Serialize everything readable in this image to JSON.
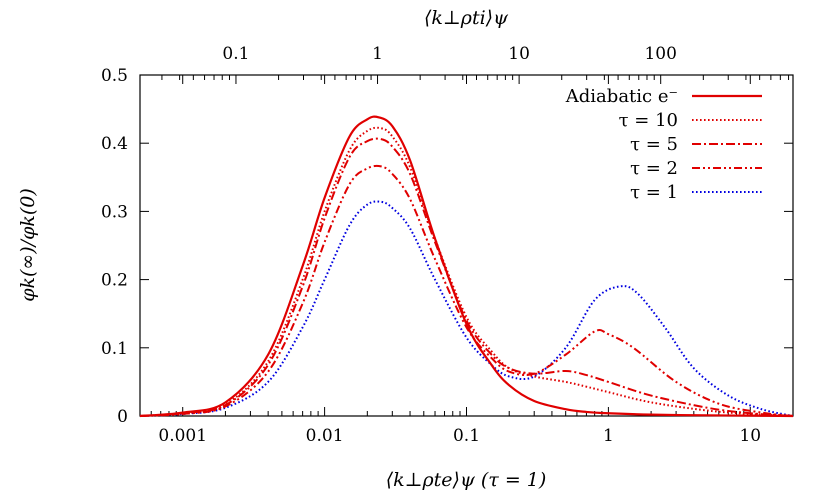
{
  "chart_data": {
    "type": "line",
    "xlabel": "⟨k⊥ρte⟩ψ (τ = 1)",
    "x2label": "⟨k⊥ρti⟩ψ",
    "ylabel": "φk(∞)/φk(0)",
    "xscale": "log",
    "xlim": [
      0.0005,
      20
    ],
    "x2scale": "log",
    "x2lim": [
      0.021,
      860
    ],
    "x_ticks": [
      0.001,
      0.01,
      0.1,
      1,
      10
    ],
    "x_tick_labels": [
      "0.001",
      "0.01",
      "0.1",
      "1",
      "10"
    ],
    "x2_ticks": [
      0.1,
      1,
      10,
      100
    ],
    "x2_tick_labels": [
      "0.1",
      "1",
      "10",
      "100"
    ],
    "ylim": [
      0,
      0.5
    ],
    "y_ticks": [
      0,
      0.1,
      0.2,
      0.3,
      0.4,
      0.5
    ],
    "y_tick_labels": [
      "0",
      "0.1",
      "0.2",
      "0.3",
      "0.4",
      "0.5"
    ],
    "grid": false,
    "legend_position": "top-right",
    "series": [
      {
        "name": "Adiabatic e⁻",
        "color": "#e00000",
        "dash": "solid",
        "x": [
          0.0005,
          0.001,
          0.002,
          0.004,
          0.007,
          0.01,
          0.015,
          0.02,
          0.024,
          0.03,
          0.04,
          0.06,
          0.1,
          0.15,
          0.2,
          0.3,
          0.5,
          0.7,
          1,
          2,
          5,
          10,
          20
        ],
        "y": [
          0,
          0.005,
          0.02,
          0.09,
          0.22,
          0.32,
          0.41,
          0.435,
          0.438,
          0.425,
          0.375,
          0.26,
          0.135,
          0.075,
          0.045,
          0.022,
          0.01,
          0.006,
          0.004,
          0.002,
          0.001,
          0.0005,
          0
        ]
      },
      {
        "name": "τ = 10",
        "color": "#e00000",
        "dash": "dotted",
        "x": [
          0.0005,
          0.001,
          0.002,
          0.004,
          0.007,
          0.01,
          0.015,
          0.02,
          0.025,
          0.03,
          0.04,
          0.06,
          0.1,
          0.15,
          0.2,
          0.3,
          0.5,
          0.7,
          1,
          2,
          5,
          10,
          20
        ],
        "y": [
          0,
          0.004,
          0.017,
          0.08,
          0.2,
          0.3,
          0.39,
          0.418,
          0.422,
          0.41,
          0.365,
          0.26,
          0.145,
          0.095,
          0.07,
          0.058,
          0.05,
          0.043,
          0.035,
          0.02,
          0.008,
          0.003,
          0
        ]
      },
      {
        "name": "τ = 5",
        "color": "#e00000",
        "dash": "dashdot",
        "x": [
          0.0005,
          0.001,
          0.002,
          0.004,
          0.007,
          0.01,
          0.015,
          0.02,
          0.025,
          0.03,
          0.04,
          0.06,
          0.1,
          0.15,
          0.2,
          0.3,
          0.5,
          0.7,
          1,
          2,
          5,
          10,
          20
        ],
        "y": [
          0,
          0.004,
          0.016,
          0.075,
          0.19,
          0.29,
          0.38,
          0.403,
          0.406,
          0.395,
          0.355,
          0.255,
          0.14,
          0.09,
          0.07,
          0.062,
          0.066,
          0.06,
          0.05,
          0.03,
          0.012,
          0.004,
          0
        ]
      },
      {
        "name": "τ = 2",
        "color": "#e00000",
        "dash": "dashdotdot",
        "x": [
          0.0005,
          0.001,
          0.002,
          0.004,
          0.007,
          0.01,
          0.015,
          0.02,
          0.025,
          0.03,
          0.04,
          0.06,
          0.1,
          0.15,
          0.2,
          0.3,
          0.5,
          0.8,
          1,
          1.5,
          3,
          6,
          12,
          20
        ],
        "y": [
          0,
          0.003,
          0.014,
          0.065,
          0.165,
          0.255,
          0.34,
          0.363,
          0.366,
          0.355,
          0.318,
          0.23,
          0.13,
          0.085,
          0.065,
          0.062,
          0.09,
          0.124,
          0.12,
          0.1,
          0.05,
          0.018,
          0.005,
          0
        ]
      },
      {
        "name": "τ = 1",
        "color": "#0000e0",
        "dash": "dotted",
        "x": [
          0.0005,
          0.001,
          0.002,
          0.004,
          0.007,
          0.01,
          0.015,
          0.02,
          0.025,
          0.03,
          0.04,
          0.06,
          0.1,
          0.15,
          0.2,
          0.3,
          0.5,
          0.8,
          1.2,
          1.6,
          2.5,
          4,
          7,
          12,
          20
        ],
        "y": [
          0,
          0.003,
          0.012,
          0.05,
          0.13,
          0.2,
          0.28,
          0.31,
          0.314,
          0.305,
          0.275,
          0.2,
          0.115,
          0.075,
          0.058,
          0.058,
          0.1,
          0.17,
          0.19,
          0.18,
          0.13,
          0.07,
          0.03,
          0.01,
          0
        ]
      }
    ]
  }
}
